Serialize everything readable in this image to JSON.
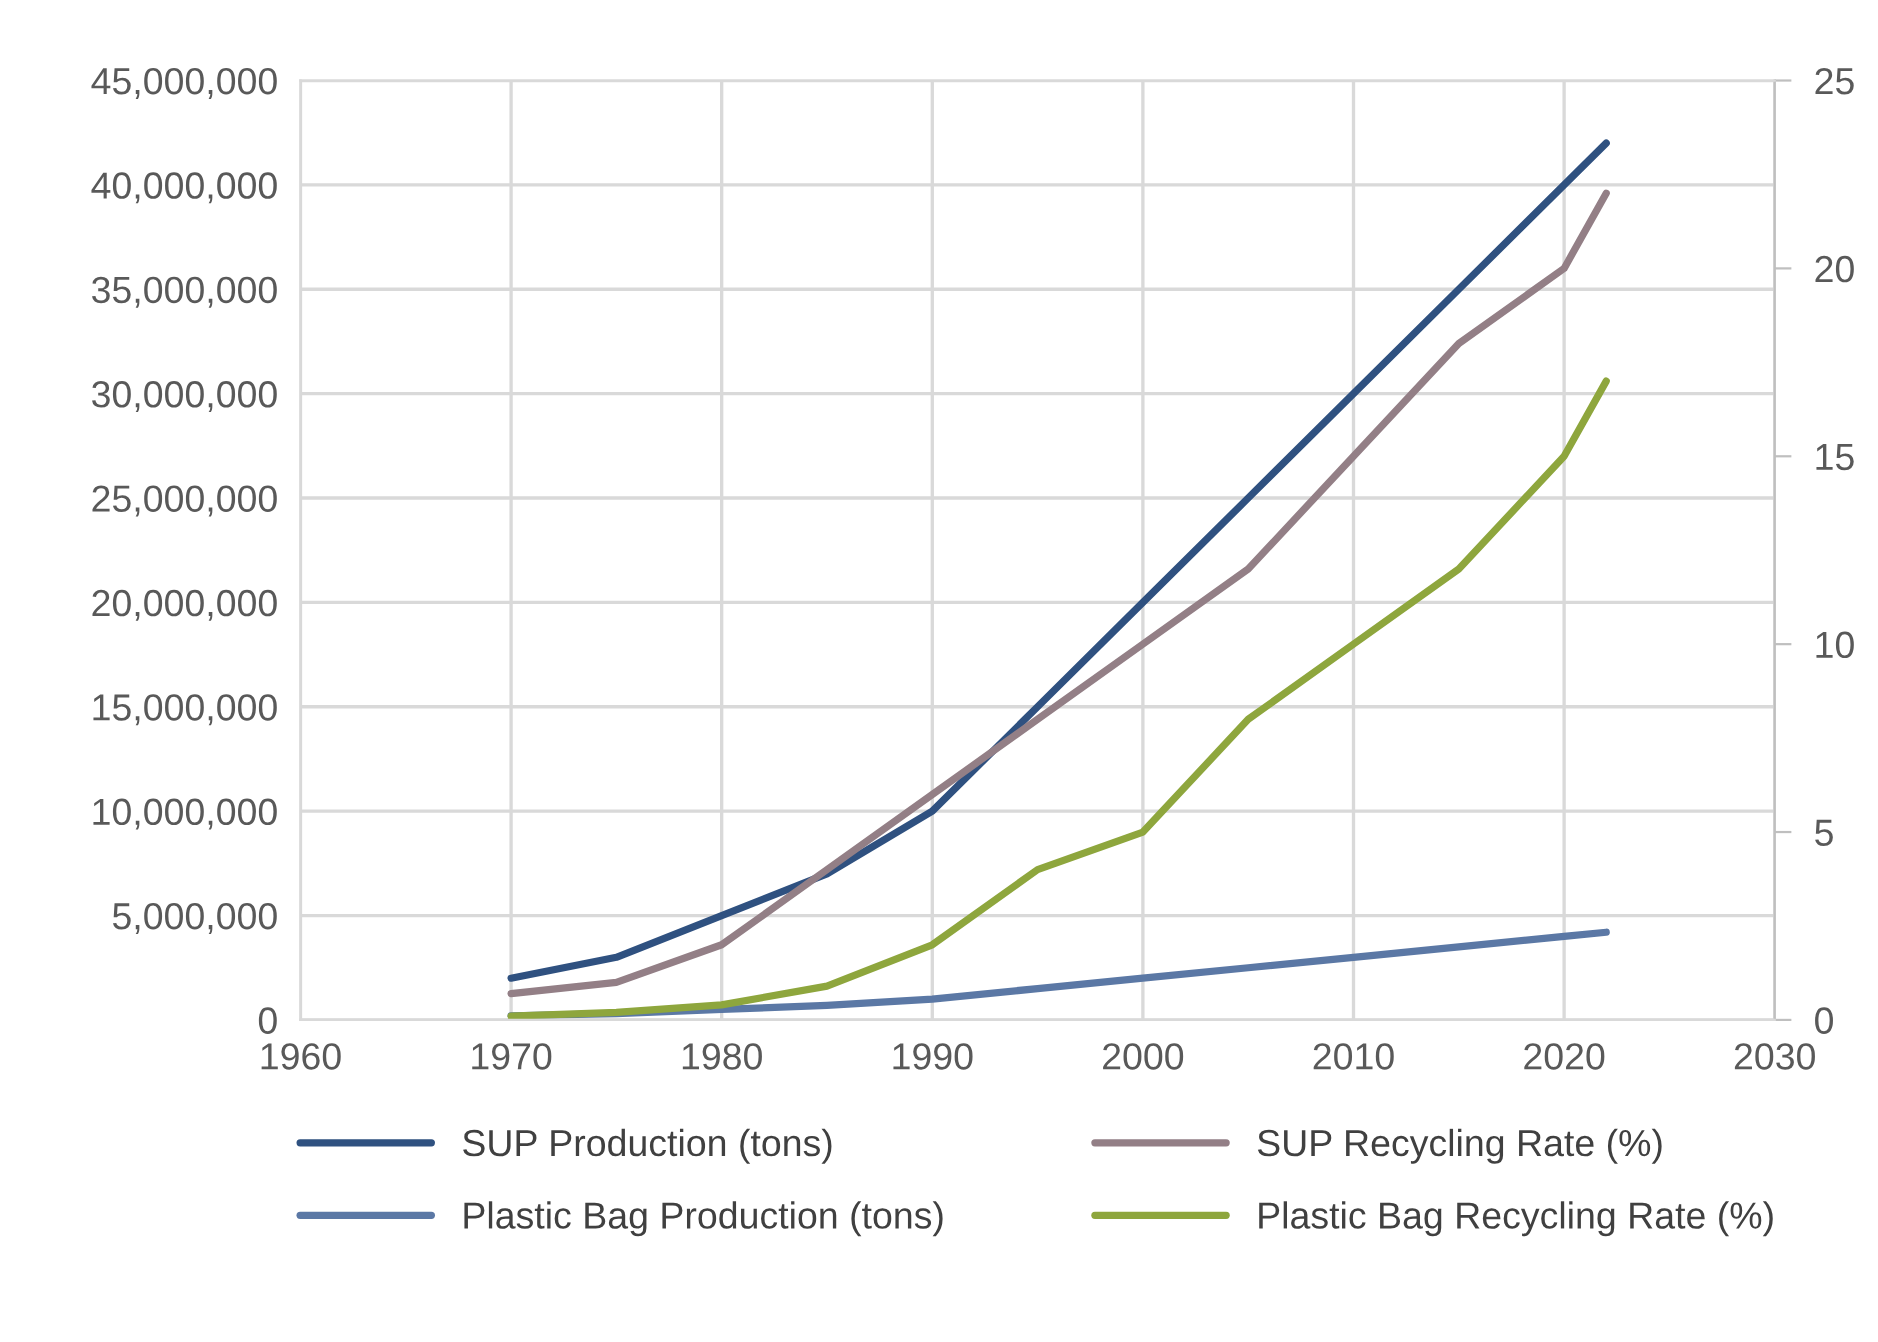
{
  "chart_data": {
    "type": "line",
    "x": [
      1970,
      1975,
      1980,
      1985,
      1990,
      1995,
      2000,
      2005,
      2010,
      2015,
      2020,
      2022
    ],
    "series": [
      {
        "name": "SUP Production (tons)",
        "color": "#2f5180",
        "values": [
          2000000,
          3000000,
          5000000,
          7000000,
          10000000,
          15000000,
          20000000,
          25000000,
          30000000,
          35000000,
          40000000,
          42000000
        ]
      },
      {
        "name": "Plastic Bag Production (tons)",
        "color": "#5b78a5",
        "values": [
          200000,
          300000,
          500000,
          700000,
          1000000,
          1500000,
          2000000,
          2500000,
          3000000,
          3500000,
          4000000,
          4200000
        ]
      },
      {
        "name": "SUP Recycling Rate (%)",
        "color": "#937f86",
        "axis": "y2",
        "values": [
          0.7,
          1.0,
          2,
          4,
          6,
          8,
          10,
          12,
          15,
          18,
          20,
          22
        ]
      },
      {
        "name": "Plastic Bag Recycling Rate (%)",
        "color": "#8ea63d",
        "axis": "y2",
        "values": [
          0.1,
          0.2,
          0.4,
          0.9,
          2,
          4,
          5,
          8,
          10,
          12,
          15,
          17
        ]
      }
    ],
    "xlim": [
      1960,
      2030
    ],
    "xticks": [
      1960,
      1970,
      1980,
      1990,
      2000,
      2010,
      2020,
      2030
    ],
    "ylim": [
      0,
      45000000
    ],
    "yticks": [
      {
        "value": 0,
        "label": "0"
      },
      {
        "value": 5000000,
        "label": "5,000,000"
      },
      {
        "value": 10000000,
        "label": "10,000,000"
      },
      {
        "value": 15000000,
        "label": "15,000,000"
      },
      {
        "value": 20000000,
        "label": "20,000,000"
      },
      {
        "value": 25000000,
        "label": "25,000,000"
      },
      {
        "value": 30000000,
        "label": "30,000,000"
      },
      {
        "value": 35000000,
        "label": "35,000,000"
      },
      {
        "value": 40000000,
        "label": "40,000,000"
      },
      {
        "value": 45000000,
        "label": "45,000,000"
      }
    ],
    "y2lim": [
      0,
      25
    ],
    "y2ticks": [
      0,
      5,
      10,
      15,
      20,
      25
    ],
    "grid": true,
    "legend": "bottom",
    "marker": "none",
    "line_style": "solid"
  }
}
